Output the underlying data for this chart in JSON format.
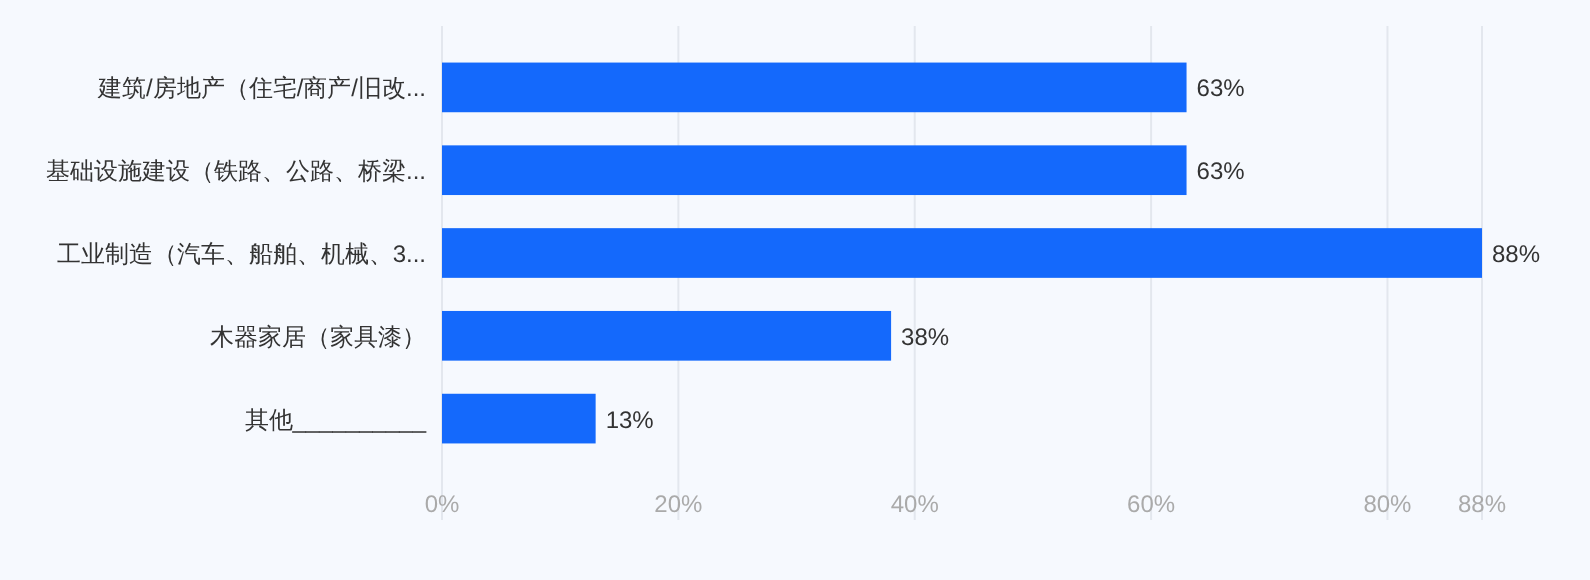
{
  "chart_data": {
    "type": "bar",
    "orientation": "horizontal",
    "categories": [
      "建筑/房地产（住宅/商产/旧改...",
      "基础设施建设（铁路、公路、桥梁...",
      "工业制造（汽车、船舶、机械、3...",
      "木器家居（家具漆）",
      "其他__________"
    ],
    "values": [
      63,
      63,
      88,
      38,
      13
    ],
    "value_labels": [
      "63%",
      "63%",
      "88%",
      "38%",
      "13%"
    ],
    "color": "#1469fc",
    "xlim": [
      0,
      88
    ],
    "xticks": [
      {
        "value": 0,
        "label": "0%"
      },
      {
        "value": 20,
        "label": "20%"
      },
      {
        "value": 40,
        "label": "40%"
      },
      {
        "value": 60,
        "label": "60%"
      },
      {
        "value": 80,
        "label": "80%"
      },
      {
        "value": 88,
        "label": "88%"
      }
    ],
    "grid": "x"
  }
}
